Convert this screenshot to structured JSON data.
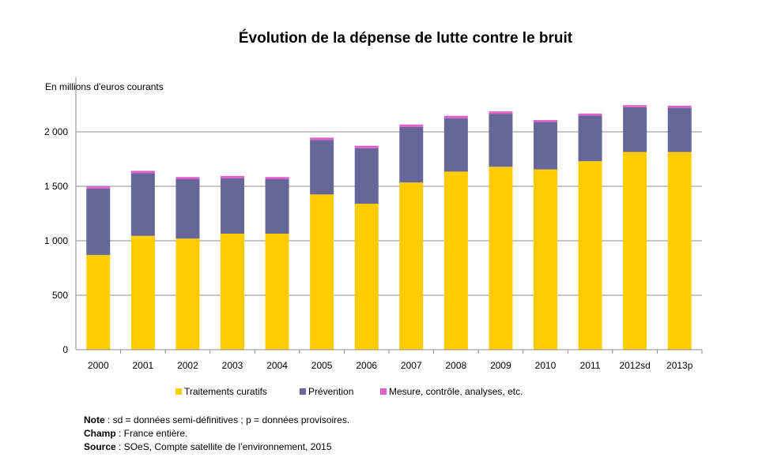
{
  "chart_data": {
    "type": "bar",
    "stacked": true,
    "title": "Évolution de la dépense de lutte contre le bruit",
    "ylabel": "En millions d'euros courants",
    "xlabel": "",
    "ylim": [
      0,
      2500
    ],
    "yticks": [
      0,
      500,
      1000,
      1500,
      2000
    ],
    "ytick_labels": [
      "0",
      "500",
      "1 000",
      "1 500",
      "2 000"
    ],
    "grid": true,
    "legend_position": "bottom",
    "categories": [
      "2000",
      "2001",
      "2002",
      "2003",
      "2004",
      "2005",
      "2006",
      "2007",
      "2008",
      "2009",
      "2010",
      "2011",
      "2012sd",
      "2013p"
    ],
    "series": [
      {
        "name": "Traitements curatifs",
        "color": "#FFCC00",
        "values": [
          870,
          1045,
          1020,
          1065,
          1065,
          1425,
          1340,
          1535,
          1635,
          1680,
          1655,
          1730,
          1815,
          1815
        ]
      },
      {
        "name": "Prévention",
        "color": "#666699",
        "values": [
          610,
          575,
          545,
          510,
          500,
          500,
          510,
          510,
          490,
          485,
          435,
          420,
          410,
          405
        ]
      },
      {
        "name": "Mesure, contrôle, analyses, etc.",
        "color": "#E25FC9",
        "values": [
          20,
          22,
          20,
          20,
          20,
          22,
          22,
          22,
          22,
          22,
          18,
          18,
          20,
          20
        ]
      }
    ]
  },
  "notes": {
    "note_label": "Note",
    "note_text": " : sd = données semi-définitives ; p = données provisoires.",
    "champ_label": "Champ",
    "champ_text": " : France entière.",
    "source_label": "Source",
    "source_text": " : SOeS, Compte satellite de l’environnement, 2015"
  }
}
